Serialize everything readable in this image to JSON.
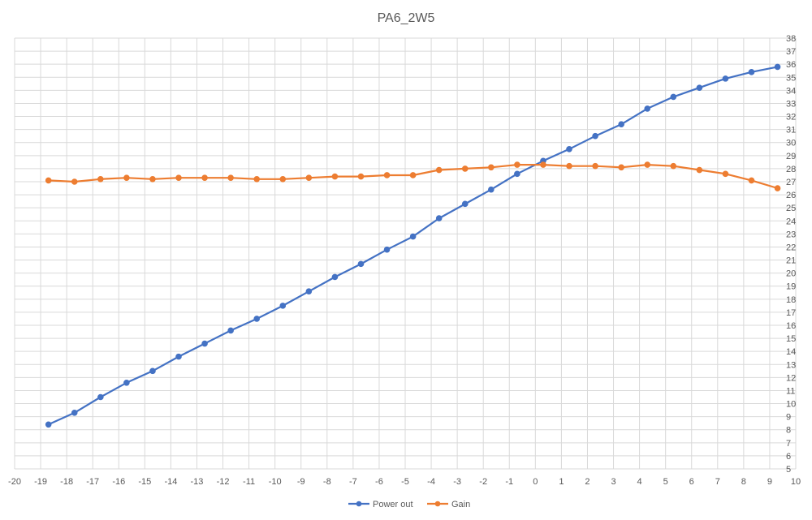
{
  "chart_data": {
    "type": "line",
    "title": "PA6_2W5",
    "xlabel": "",
    "ylabel": "",
    "xlim": [
      -20,
      10
    ],
    "ylim": [
      5,
      38
    ],
    "x_ticks": [
      -20,
      -19,
      -18,
      -17,
      -16,
      -15,
      -14,
      -13,
      -12,
      -11,
      -10,
      -9,
      -8,
      -7,
      -6,
      -5,
      -4,
      -3,
      -2,
      -1,
      0,
      1,
      2,
      3,
      4,
      5,
      6,
      7,
      8,
      9,
      10
    ],
    "y_ticks": [
      5,
      6,
      7,
      8,
      9,
      10,
      11,
      12,
      13,
      14,
      15,
      16,
      17,
      18,
      19,
      20,
      21,
      22,
      23,
      24,
      25,
      26,
      27,
      28,
      29,
      30,
      31,
      32,
      33,
      34,
      35,
      36,
      37,
      38
    ],
    "y_axis_side": "right",
    "grid": true,
    "legend_position": "bottom",
    "series": [
      {
        "name": "Power out",
        "color": "#4472C4",
        "x": [
          -18.7,
          -17.7,
          -16.7,
          -15.7,
          -14.7,
          -13.7,
          -12.7,
          -11.7,
          -10.7,
          -9.7,
          -8.7,
          -7.7,
          -6.7,
          -5.7,
          -4.7,
          -3.7,
          -2.7,
          -1.7,
          -0.7,
          0.3,
          1.3,
          2.3,
          3.3,
          4.3,
          5.3,
          6.3,
          7.3,
          8.3,
          9.3
        ],
        "y": [
          8.4,
          9.3,
          10.5,
          11.6,
          12.5,
          13.6,
          14.6,
          15.6,
          16.5,
          17.5,
          18.6,
          19.7,
          20.7,
          21.8,
          22.8,
          24.2,
          25.3,
          26.4,
          27.6,
          28.6,
          29.5,
          30.5,
          31.4,
          32.6,
          33.5,
          34.2,
          34.9,
          35.4,
          35.8
        ]
      },
      {
        "name": "Gain",
        "color": "#ED7D31",
        "x": [
          -18.7,
          -17.7,
          -16.7,
          -15.7,
          -14.7,
          -13.7,
          -12.7,
          -11.7,
          -10.7,
          -9.7,
          -8.7,
          -7.7,
          -6.7,
          -5.7,
          -4.7,
          -3.7,
          -2.7,
          -1.7,
          -0.7,
          0.3,
          1.3,
          2.3,
          3.3,
          4.3,
          5.3,
          6.3,
          7.3,
          8.3,
          9.3
        ],
        "y": [
          27.1,
          27.0,
          27.2,
          27.3,
          27.2,
          27.3,
          27.3,
          27.3,
          27.2,
          27.2,
          27.3,
          27.4,
          27.4,
          27.5,
          27.5,
          27.9,
          28.0,
          28.1,
          28.3,
          28.3,
          28.2,
          28.2,
          28.1,
          28.3,
          28.2,
          27.9,
          27.6,
          27.1,
          26.5
        ]
      }
    ]
  }
}
